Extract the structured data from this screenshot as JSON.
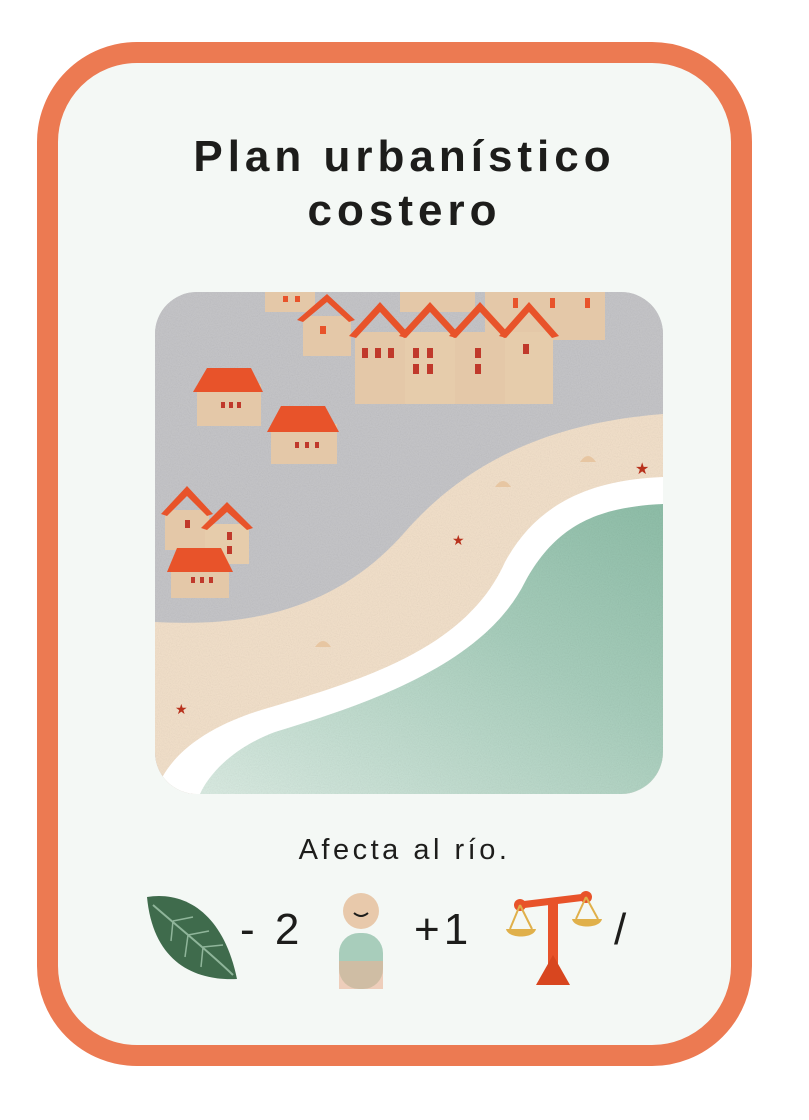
{
  "card": {
    "title_line1": "Plan urbanístico",
    "title_line2": "costero",
    "description": "Afecta al río.",
    "effects": {
      "nature": "- 2",
      "people": "+1",
      "justice": "/"
    },
    "icons": [
      "leaf-icon",
      "person-icon",
      "scales-icon"
    ]
  },
  "colors": {
    "border": "#ec7a52",
    "background": "#f4f8f5",
    "text": "#1d1d1b",
    "roof": "#e8532a",
    "sea": "#a7cdbb",
    "sand": "#f4e2cc"
  }
}
